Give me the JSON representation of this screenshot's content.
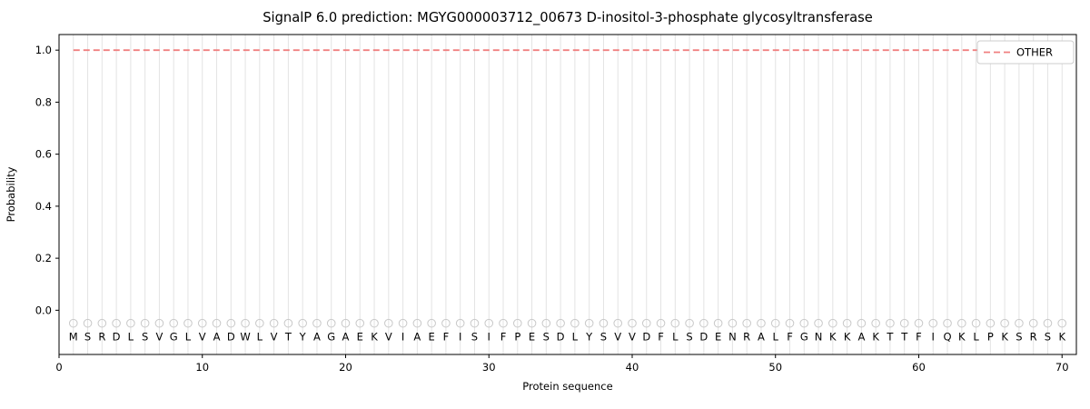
{
  "title": "SignalP 6.0 prediction: MGYG000003712_00673 D-inositol-3-phosphate glycosyltransferase",
  "colors": {
    "background": "#ffffff",
    "other_line": "#f08080",
    "grid": "#e3e3e3",
    "marker": "#c9c9c9",
    "spine": "#000000",
    "text": "#000000",
    "legend_border": "#cccccc"
  },
  "chart_data": {
    "type": "line",
    "title": "SignalP 6.0 prediction: MGYG000003712_00673 D-inositol-3-phosphate glycosyltransferase",
    "xlabel": "Protein sequence",
    "ylabel": "Probability",
    "xlim": [
      0,
      71
    ],
    "ylim": [
      -0.17,
      1.06
    ],
    "xticks": [
      0,
      10,
      20,
      30,
      40,
      50,
      60,
      70
    ],
    "yticks": [
      0.0,
      0.2,
      0.4,
      0.6,
      0.8,
      1.0
    ],
    "grid": "vertical-line-per-residue",
    "legend_position": "upper right",
    "legend_label": "OTHER",
    "sequence": "MSRDLSVGLVADWLVTYAGAEKVIAEFISIFPESDLYSVVDFLSDENRALFGNKKAKTTFIQKLPKSRSK",
    "sequence_length": 70,
    "marker_y": -0.05,
    "letter_y": -0.115,
    "series": [
      {
        "name": "OTHER",
        "style": "dashed",
        "color": "#f08080",
        "x_start": 1,
        "x_end": 70,
        "y_constant": 1.0
      }
    ]
  }
}
